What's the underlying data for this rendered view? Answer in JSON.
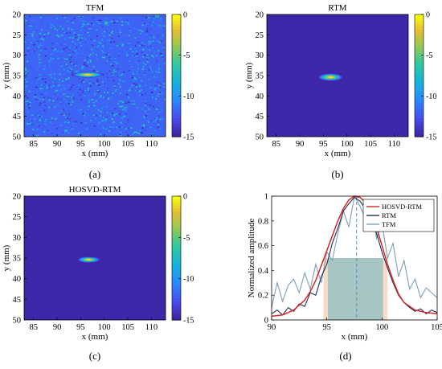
{
  "chart_data": [
    {
      "type": "heatmap",
      "panel_label": "(a)",
      "title": "TFM",
      "xlabel": "x (mm)",
      "ylabel": "y (mm)",
      "xlim": [
        83,
        113
      ],
      "ylim": [
        20,
        50
      ],
      "y_reversed": true,
      "xticks": [
        85,
        90,
        95,
        100,
        105,
        110
      ],
      "yticks": [
        20,
        25,
        30,
        35,
        40,
        45,
        50
      ],
      "colorbar": {
        "range": [
          -15,
          0
        ],
        "ticks": [
          0,
          -5,
          -10,
          -15
        ]
      },
      "background_level": -12,
      "noise": "strong speckle",
      "spot": {
        "x": 96.5,
        "y": 34.8,
        "half_width_x": 3.5,
        "half_width_y": 0.7,
        "peak": 0
      }
    },
    {
      "type": "heatmap",
      "panel_label": "(b)",
      "title": "RTM",
      "xlabel": "x (mm)",
      "ylabel": "y (mm)",
      "xlim": [
        83,
        113
      ],
      "ylim": [
        20,
        50
      ],
      "y_reversed": true,
      "xticks": [
        85,
        90,
        95,
        100,
        105,
        110
      ],
      "yticks": [
        20,
        25,
        30,
        35,
        40,
        45,
        50
      ],
      "colorbar": {
        "range": [
          -15,
          0
        ],
        "ticks": [
          0,
          -5,
          -10,
          -15
        ]
      },
      "background_level": -15,
      "noise": "none",
      "spot": {
        "x": 96.5,
        "y": 35.4,
        "half_width_x": 2.6,
        "half_width_y": 0.9,
        "peak": 0
      }
    },
    {
      "type": "heatmap",
      "panel_label": "(c)",
      "title": "HOSVD-RTM",
      "xlabel": "x (mm)",
      "ylabel": "y (mm)",
      "xlim": [
        83,
        113
      ],
      "ylim": [
        20,
        50
      ],
      "y_reversed": true,
      "xticks": [
        85,
        90,
        95,
        100,
        105,
        110
      ],
      "yticks": [
        20,
        25,
        30,
        35,
        40,
        45,
        50
      ],
      "colorbar": {
        "range": [
          -15,
          0
        ],
        "ticks": [
          0,
          -5,
          -10,
          -15
        ]
      },
      "background_level": -15,
      "noise": "none",
      "spot": {
        "x": 96.7,
        "y": 35.4,
        "half_width_x": 2.4,
        "half_width_y": 0.7,
        "peak": 0
      }
    },
    {
      "type": "line",
      "panel_label": "(d)",
      "title": "",
      "xlabel": "x (mm)",
      "ylabel": "Normalized amplitude",
      "xlim": [
        90,
        105
      ],
      "ylim": [
        0,
        1
      ],
      "xticks": [
        90,
        95,
        100,
        105
      ],
      "yticks": [
        0,
        0.2,
        0.4,
        0.6,
        0.8,
        1
      ],
      "legend_position": "top-right",
      "reference_x": 97.7,
      "half_max_level": 0.5,
      "half_max_bands": [
        {
          "x0": 94.7,
          "x1": 100.5,
          "color": "#f6dcc6"
        },
        {
          "x0": 95.1,
          "x1": 100.1,
          "color": "#9dc2c2"
        }
      ],
      "series": [
        {
          "name": "HOSVD-RTM",
          "color": "#d62728",
          "x": [
            90,
            91,
            92,
            93,
            93.5,
            94,
            94.5,
            95,
            95.5,
            96,
            96.5,
            97,
            97.5,
            98,
            98.5,
            99,
            99.5,
            100,
            100.5,
            101,
            101.5,
            102,
            103,
            104,
            105
          ],
          "y": [
            0.03,
            0.04,
            0.08,
            0.16,
            0.23,
            0.32,
            0.44,
            0.56,
            0.68,
            0.8,
            0.9,
            0.97,
            1.0,
            0.99,
            0.95,
            0.87,
            0.75,
            0.6,
            0.45,
            0.32,
            0.21,
            0.14,
            0.08,
            0.06,
            0.05
          ]
        },
        {
          "name": "RTM",
          "color": "#1f2f57",
          "x": [
            90,
            90.5,
            91,
            91.5,
            92,
            92.5,
            93,
            93.5,
            94,
            94.5,
            95,
            95.5,
            96,
            96.5,
            97,
            97.5,
            98,
            98.5,
            99,
            99.5,
            100,
            100.5,
            101,
            101.5,
            102,
            102.5,
            103,
            103.5,
            104,
            104.5,
            105
          ],
          "y": [
            0.05,
            0.08,
            0.04,
            0.1,
            0.07,
            0.13,
            0.11,
            0.22,
            0.2,
            0.35,
            0.45,
            0.62,
            0.74,
            0.88,
            0.94,
            0.99,
            0.96,
            0.9,
            0.83,
            0.7,
            0.55,
            0.42,
            0.3,
            0.2,
            0.14,
            0.1,
            0.07,
            0.09,
            0.05,
            0.08,
            0.06
          ]
        },
        {
          "name": "TFM",
          "color": "#7f9fb2",
          "x": [
            90,
            90.5,
            91,
            91.5,
            92,
            92.5,
            93,
            93.5,
            94,
            94.5,
            95,
            95.5,
            96,
            96.5,
            97,
            97.5,
            98,
            98.5,
            99,
            99.5,
            100,
            100.5,
            101,
            101.5,
            102,
            102.5,
            103,
            103.5,
            104,
            104.5,
            105
          ],
          "y": [
            0.1,
            0.3,
            0.15,
            0.28,
            0.33,
            0.22,
            0.38,
            0.25,
            0.45,
            0.3,
            0.55,
            0.48,
            0.7,
            0.88,
            0.75,
            1.0,
            0.92,
            0.82,
            0.95,
            0.66,
            0.78,
            0.5,
            0.62,
            0.35,
            0.48,
            0.25,
            0.33,
            0.18,
            0.26,
            0.22,
            0.18
          ]
        }
      ]
    }
  ]
}
